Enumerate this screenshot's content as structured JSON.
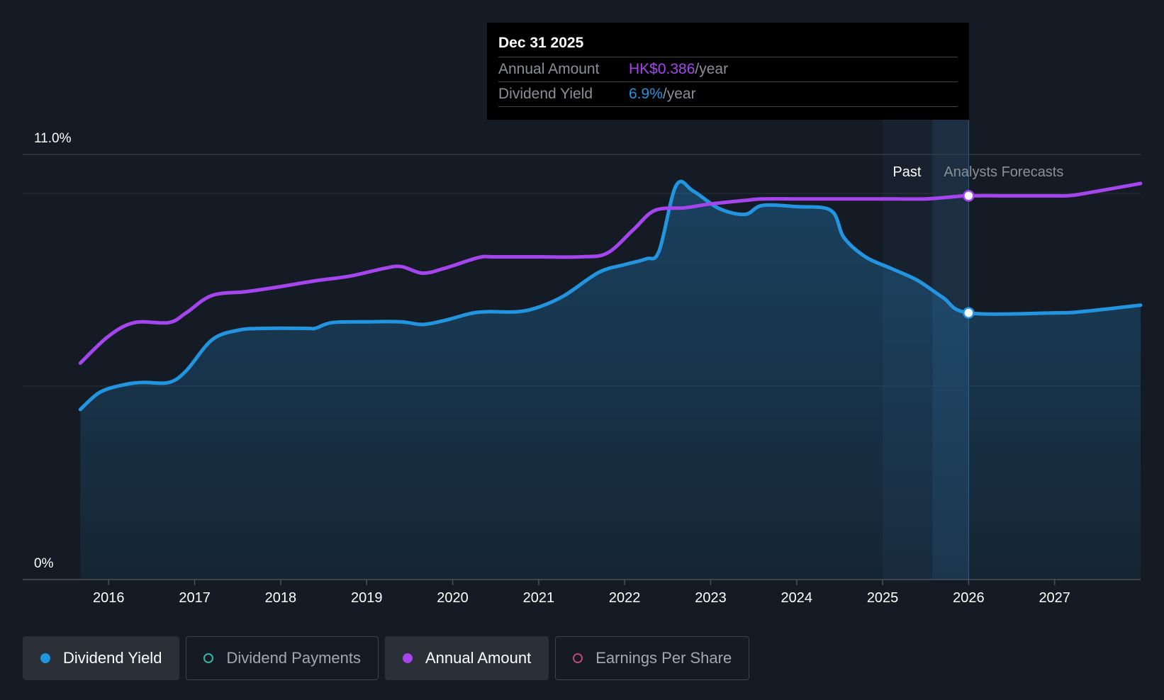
{
  "tooltip": {
    "date": "Dec 31 2025",
    "rows": [
      {
        "label": "Annual Amount",
        "value": "HK$0.386",
        "unit": "/year",
        "color": "#a545ee"
      },
      {
        "label": "Dividend Yield",
        "value": "6.9%",
        "unit": "/year",
        "color": "#2394df"
      }
    ]
  },
  "regions": {
    "past_label": "Past",
    "forecast_label": "Analysts Forecasts"
  },
  "legend": [
    {
      "label": "Dividend Yield",
      "color": "#2394df",
      "active": true,
      "filled": true
    },
    {
      "label": "Dividend Payments",
      "color": "#35b8a3",
      "active": false,
      "filled": false
    },
    {
      "label": "Annual Amount",
      "color": "#a545ee",
      "active": true,
      "filled": true
    },
    {
      "label": "Earnings Per Share",
      "color": "#c0457c",
      "active": false,
      "filled": false
    }
  ],
  "chart_data": {
    "type": "line",
    "y_ticks": [
      "11.0%",
      "0%"
    ],
    "ylim": [
      0,
      11.0
    ],
    "x_ticks": [
      "2016",
      "2017",
      "2018",
      "2019",
      "2020",
      "2021",
      "2022",
      "2023",
      "2024",
      "2025",
      "2026",
      "2027"
    ],
    "xlim": [
      2015.0,
      2028.0
    ],
    "past_end": 2025.58,
    "highlight_x": 2026.0,
    "colors": {
      "yield": "#2394df",
      "annual": "#a545ee"
    },
    "series": [
      {
        "name": "Dividend Yield",
        "unit": "%",
        "points": [
          [
            2015.67,
            4.4
          ],
          [
            2015.9,
            4.85
          ],
          [
            2016.2,
            5.05
          ],
          [
            2016.4,
            5.1
          ],
          [
            2016.7,
            5.1
          ],
          [
            2016.9,
            5.4
          ],
          [
            2017.2,
            6.2
          ],
          [
            2017.5,
            6.45
          ],
          [
            2017.8,
            6.5
          ],
          [
            2018.3,
            6.5
          ],
          [
            2018.4,
            6.5
          ],
          [
            2018.6,
            6.65
          ],
          [
            2019.0,
            6.67
          ],
          [
            2019.4,
            6.67
          ],
          [
            2019.65,
            6.6
          ],
          [
            2019.9,
            6.7
          ],
          [
            2020.2,
            6.88
          ],
          [
            2020.4,
            6.93
          ],
          [
            2020.75,
            6.93
          ],
          [
            2021.0,
            7.05
          ],
          [
            2021.3,
            7.35
          ],
          [
            2021.7,
            7.95
          ],
          [
            2022.0,
            8.15
          ],
          [
            2022.25,
            8.3
          ],
          [
            2022.4,
            8.5
          ],
          [
            2022.6,
            10.2
          ],
          [
            2022.8,
            10.05
          ],
          [
            2023.1,
            9.6
          ],
          [
            2023.4,
            9.45
          ],
          [
            2023.6,
            9.68
          ],
          [
            2024.0,
            9.65
          ],
          [
            2024.4,
            9.55
          ],
          [
            2024.55,
            8.85
          ],
          [
            2024.8,
            8.35
          ],
          [
            2025.1,
            8.05
          ],
          [
            2025.4,
            7.75
          ],
          [
            2025.7,
            7.3
          ],
          [
            2026.0,
            6.9
          ],
          [
            2027.0,
            6.9
          ],
          [
            2027.3,
            6.93
          ],
          [
            2028.0,
            7.1
          ]
        ]
      },
      {
        "name": "Annual Amount",
        "unit": "HK$",
        "points": [
          [
            2015.67,
            5.6
          ],
          [
            2016.0,
            6.3
          ],
          [
            2016.3,
            6.65
          ],
          [
            2016.7,
            6.65
          ],
          [
            2016.9,
            6.9
          ],
          [
            2017.2,
            7.35
          ],
          [
            2017.6,
            7.45
          ],
          [
            2018.0,
            7.58
          ],
          [
            2018.4,
            7.73
          ],
          [
            2018.8,
            7.85
          ],
          [
            2019.2,
            8.05
          ],
          [
            2019.4,
            8.1
          ],
          [
            2019.65,
            7.93
          ],
          [
            2019.9,
            8.05
          ],
          [
            2020.3,
            8.33
          ],
          [
            2020.5,
            8.35
          ],
          [
            2021.0,
            8.35
          ],
          [
            2021.5,
            8.35
          ],
          [
            2021.8,
            8.45
          ],
          [
            2022.1,
            9.05
          ],
          [
            2022.35,
            9.55
          ],
          [
            2022.7,
            9.62
          ],
          [
            2023.0,
            9.72
          ],
          [
            2023.4,
            9.81
          ],
          [
            2023.6,
            9.85
          ],
          [
            2024.0,
            9.85
          ],
          [
            2024.5,
            9.85
          ],
          [
            2025.0,
            9.85
          ],
          [
            2025.5,
            9.85
          ],
          [
            2025.8,
            9.9
          ],
          [
            2026.0,
            9.93
          ],
          [
            2026.5,
            9.93
          ],
          [
            2027.0,
            9.93
          ],
          [
            2027.2,
            9.94
          ],
          [
            2027.5,
            10.05
          ],
          [
            2028.0,
            10.25
          ]
        ]
      }
    ]
  }
}
